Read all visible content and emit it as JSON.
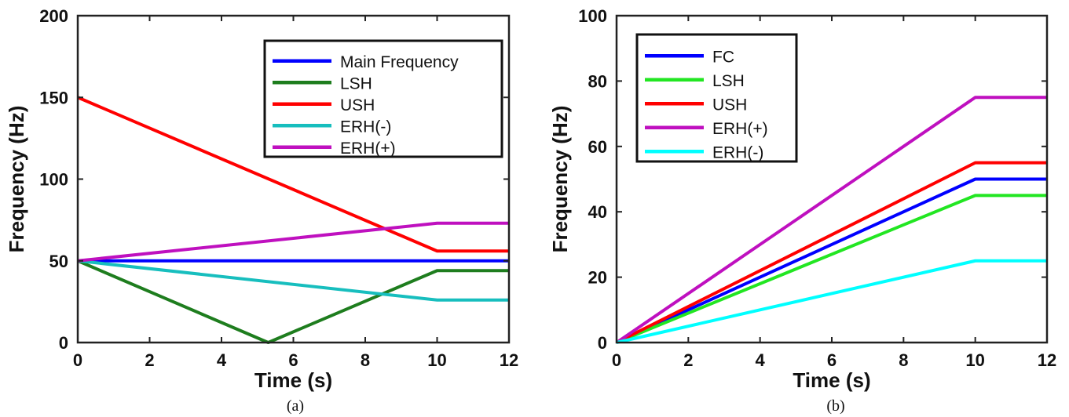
{
  "chart_data": [
    {
      "type": "line",
      "caption": "(a)",
      "xlabel": "Time (s)",
      "ylabel": "Frequency (Hz)",
      "xlim": [
        0,
        12
      ],
      "ylim": [
        0,
        200
      ],
      "xticks": [
        0,
        2,
        4,
        6,
        8,
        10,
        12
      ],
      "yticks": [
        0,
        50,
        100,
        150,
        200
      ],
      "legend_position": "top-right",
      "series": [
        {
          "name": "Main Frequency",
          "color": "#0000ff",
          "x": [
            0,
            10,
            12
          ],
          "y": [
            50,
            50,
            50
          ]
        },
        {
          "name": "LSH",
          "color": "#1e7d1e",
          "x": [
            0,
            5.3,
            10,
            12
          ],
          "y": [
            50,
            0,
            44,
            44
          ]
        },
        {
          "name": "USH",
          "color": "#ff0000",
          "x": [
            0,
            10,
            12
          ],
          "y": [
            150,
            56,
            56
          ]
        },
        {
          "name": "ERH(-)",
          "color": "#17bebe",
          "x": [
            0,
            10,
            12
          ],
          "y": [
            50,
            26,
            26
          ]
        },
        {
          "name": "ERH(+)",
          "color": "#bf10bf",
          "x": [
            0,
            10,
            12
          ],
          "y": [
            50,
            73,
            73
          ]
        }
      ]
    },
    {
      "type": "line",
      "caption": "(b)",
      "xlabel": "Time (s)",
      "ylabel": "Frequency (Hz)",
      "xlim": [
        0,
        12
      ],
      "ylim": [
        0,
        100
      ],
      "xticks": [
        0,
        2,
        4,
        6,
        8,
        10,
        12
      ],
      "yticks": [
        0,
        20,
        40,
        60,
        80,
        100
      ],
      "legend_position": "top-left",
      "series": [
        {
          "name": "FC",
          "color": "#0000ff",
          "x": [
            0,
            10,
            12
          ],
          "y": [
            0,
            50,
            50
          ]
        },
        {
          "name": "LSH",
          "color": "#22e622",
          "x": [
            0,
            10,
            12
          ],
          "y": [
            0,
            45,
            45
          ]
        },
        {
          "name": "USH",
          "color": "#ff0000",
          "x": [
            0,
            10,
            12
          ],
          "y": [
            0,
            55,
            55
          ]
        },
        {
          "name": "ERH(+)",
          "color": "#bf10bf",
          "x": [
            0,
            10,
            12
          ],
          "y": [
            0,
            75,
            75
          ]
        },
        {
          "name": "ERH(-)",
          "color": "#00ffff",
          "x": [
            0,
            10,
            12
          ],
          "y": [
            0,
            25,
            25
          ]
        }
      ]
    }
  ]
}
